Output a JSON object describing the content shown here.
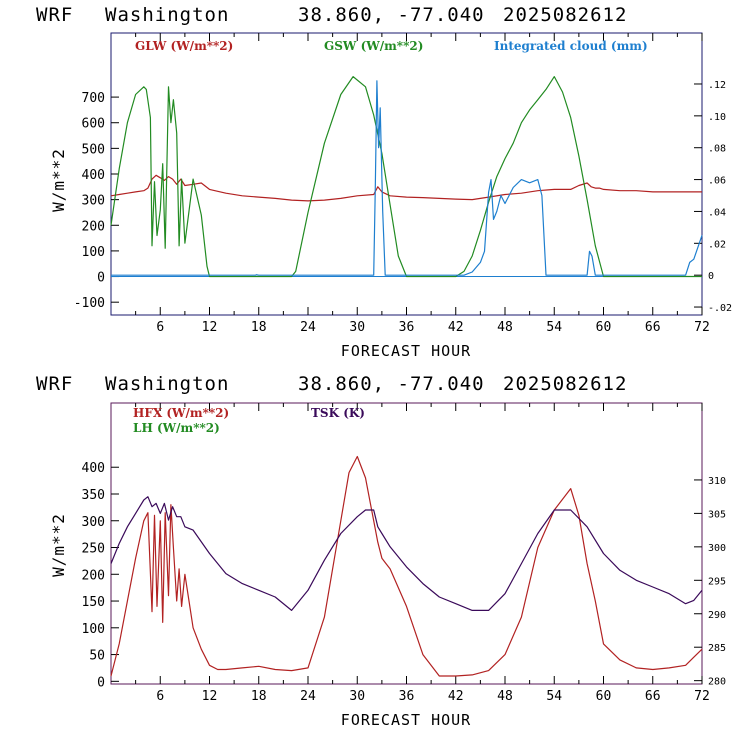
{
  "top_panel": {
    "header": {
      "model": "WRF",
      "location": "Washington",
      "coords": "38.860, -77.040",
      "init": "2025082612"
    }
  },
  "bottom_panel": {
    "header": {
      "model": "WRF",
      "location": "Washington",
      "coords": "38.860, -77.040",
      "init": "2025082612"
    }
  },
  "colors": {
    "red": "#b22222",
    "green": "#228b22",
    "blue": "#1e7fcf",
    "purple": "#3a0a5a",
    "frame_top": "#1a1a6e",
    "frame_bottom": "#5a1a5a"
  },
  "chart_data": [
    {
      "type": "line",
      "xlabel": "FORECAST HOUR",
      "ylabel": "W/m**2",
      "xlim": [
        0,
        72
      ],
      "ylim": [
        -150,
        950
      ],
      "x_ticks": [
        "6",
        "12",
        "18",
        "24",
        "30",
        "36",
        "42",
        "48",
        "54",
        "60",
        "66",
        "72"
      ],
      "y_ticks": [
        "-100",
        "0",
        "100",
        "200",
        "300",
        "400",
        "500",
        "600",
        "700"
      ],
      "y2lim": [
        -0.025,
        0.152
      ],
      "y2_ticks": [
        "-.02",
        "0",
        ".02",
        ".04",
        ".06",
        ".08",
        ".10",
        ".12"
      ],
      "series": [
        {
          "name": "GLW (W/m**2)",
          "color": "#b22222",
          "axis": "left",
          "x": [
            0,
            1,
            2,
            3,
            4,
            4.5,
            5,
            5.5,
            6,
            6.5,
            7,
            7.5,
            8,
            8.5,
            9,
            10,
            11,
            12,
            14,
            16,
            18,
            20,
            22,
            24,
            26,
            28,
            30,
            32,
            32.5,
            33,
            34,
            36,
            38,
            40,
            42,
            44,
            46,
            48,
            50,
            52,
            54,
            56,
            57,
            58,
            58.5,
            59,
            59.5,
            60,
            62,
            64,
            66,
            68,
            70,
            72
          ],
          "y": [
            315,
            320,
            325,
            330,
            335,
            345,
            380,
            395,
            385,
            375,
            390,
            380,
            360,
            380,
            355,
            360,
            365,
            340,
            325,
            315,
            310,
            305,
            298,
            295,
            298,
            305,
            315,
            320,
            350,
            330,
            315,
            310,
            308,
            305,
            302,
            300,
            310,
            320,
            325,
            335,
            340,
            340,
            355,
            365,
            350,
            345,
            345,
            340,
            335,
            335,
            330,
            330,
            330,
            330
          ]
        },
        {
          "name": "GSW (W/m**2)",
          "color": "#228b22",
          "axis": "left",
          "x": [
            0,
            1,
            2,
            3,
            4,
            4.3,
            4.8,
            5,
            5.3,
            5.6,
            6,
            6.3,
            6.6,
            7,
            7.3,
            7.6,
            8,
            8.3,
            8.6,
            9,
            10,
            11,
            11.7,
            12,
            14,
            16,
            18,
            20,
            22,
            22.5,
            24,
            26,
            28,
            29.5,
            31,
            32,
            33,
            34,
            35,
            36,
            36.5,
            38,
            40,
            42,
            43,
            44,
            45,
            46,
            47,
            48,
            49,
            50,
            51,
            52,
            53,
            54,
            55,
            56,
            57,
            58,
            59,
            60,
            62,
            64,
            66,
            68,
            70,
            72
          ],
          "y": [
            200,
            420,
            600,
            710,
            740,
            730,
            620,
            120,
            370,
            160,
            260,
            440,
            110,
            740,
            600,
            690,
            560,
            120,
            380,
            130,
            380,
            240,
            40,
            0,
            0,
            0,
            0,
            0,
            0,
            20,
            250,
            520,
            710,
            780,
            740,
            630,
            480,
            280,
            80,
            0,
            0,
            0,
            0,
            0,
            20,
            80,
            180,
            290,
            390,
            460,
            520,
            600,
            650,
            690,
            730,
            780,
            720,
            620,
            470,
            300,
            120,
            0,
            0,
            0,
            0,
            0,
            0,
            0
          ]
        },
        {
          "name": "Integrated cloud (mm)",
          "color": "#1e7fcf",
          "axis": "right",
          "x": [
            0,
            10,
            17.6,
            17.7,
            18,
            32,
            32.2,
            32.4,
            32.6,
            32.8,
            33.1,
            33.4,
            34,
            43,
            44,
            45,
            45.5,
            46,
            46.3,
            46.6,
            47,
            47.5,
            48,
            49,
            50,
            51,
            52,
            52.5,
            53,
            58,
            58.3,
            58.6,
            59,
            60,
            70,
            70.5,
            71,
            72
          ],
          "y": [
            0,
            0,
            0,
            0.0003,
            0,
            0,
            0.055,
            0.122,
            0.08,
            0.105,
            0.04,
            0,
            0,
            0,
            0.002,
            0.008,
            0.015,
            0.052,
            0.06,
            0.035,
            0.04,
            0.05,
            0.045,
            0.055,
            0.06,
            0.058,
            0.06,
            0.05,
            0,
            0,
            0.015,
            0.012,
            0,
            0,
            0,
            0.008,
            0.01,
            0.025
          ]
        }
      ]
    },
    {
      "type": "line",
      "xlabel": "FORECAST HOUR",
      "ylabel": "W/m**2",
      "xlim": [
        0,
        72
      ],
      "ylim": [
        -5,
        520
      ],
      "x_ticks": [
        "6",
        "12",
        "18",
        "24",
        "30",
        "36",
        "42",
        "48",
        "54",
        "60",
        "66",
        "72"
      ],
      "y_ticks": [
        "0",
        "50",
        "100",
        "150",
        "200",
        "250",
        "300",
        "350",
        "400"
      ],
      "y2lim": [
        279.5,
        321.5
      ],
      "y2_ticks": [
        "280",
        "285",
        "290",
        "295",
        "300",
        "305",
        "310"
      ],
      "series": [
        {
          "name": "HFX (W/m**2)",
          "color": "#b22222",
          "axis": "left",
          "x": [
            0,
            1,
            2,
            3,
            4,
            4.5,
            5,
            5.3,
            5.6,
            6,
            6.3,
            6.6,
            7,
            7.3,
            7.6,
            8,
            8.3,
            8.6,
            9,
            9.5,
            10,
            11,
            12,
            13,
            14,
            16,
            18,
            20,
            22,
            24,
            26,
            28,
            29,
            30,
            31,
            32,
            32.5,
            33,
            33.5,
            34,
            36,
            38,
            40,
            42,
            44,
            46,
            48,
            50,
            52,
            54,
            56,
            57,
            58,
            59,
            60,
            62,
            64,
            66,
            68,
            70,
            71,
            72
          ],
          "y": [
            10,
            70,
            150,
            230,
            300,
            315,
            130,
            310,
            140,
            300,
            110,
            315,
            160,
            330,
            250,
            150,
            210,
            140,
            200,
            150,
            100,
            60,
            30,
            22,
            22,
            25,
            28,
            22,
            20,
            25,
            120,
            300,
            390,
            420,
            380,
            300,
            260,
            230,
            220,
            210,
            140,
            50,
            10,
            10,
            12,
            20,
            50,
            120,
            250,
            320,
            360,
            310,
            220,
            150,
            70,
            40,
            25,
            22,
            25,
            30,
            45,
            60
          ]
        },
        {
          "name": "LH (W/m**2)",
          "color": "#228b22",
          "axis": "left",
          "x": [],
          "y": []
        },
        {
          "name": "TSK (K)",
          "color": "#3a0a5a",
          "axis": "right",
          "x": [
            0,
            1,
            2,
            3,
            4,
            4.5,
            5,
            5.5,
            6,
            6.5,
            7,
            7.5,
            8,
            8.5,
            9,
            10,
            12,
            14,
            16,
            18,
            20,
            22,
            24,
            26,
            28,
            30,
            31,
            32,
            32.5,
            33,
            34,
            36,
            38,
            40,
            42,
            44,
            46,
            48,
            50,
            52,
            54,
            56,
            58,
            60,
            62,
            64,
            66,
            68,
            70,
            71,
            72
          ],
          "y": [
            297.5,
            300.5,
            303,
            305,
            307,
            307.5,
            306,
            306.5,
            305,
            306.5,
            304,
            306,
            304.5,
            304.5,
            303,
            302.5,
            299,
            296,
            294.5,
            293.5,
            292.5,
            290.5,
            293.5,
            298,
            302,
            304.5,
            305.5,
            305.5,
            303,
            302,
            300,
            297,
            294.5,
            292.5,
            291.5,
            290.5,
            290.5,
            293,
            297.5,
            302,
            305.5,
            305.5,
            303,
            299,
            296.5,
            295,
            294,
            293,
            291.5,
            292,
            293.5
          ]
        }
      ]
    }
  ]
}
